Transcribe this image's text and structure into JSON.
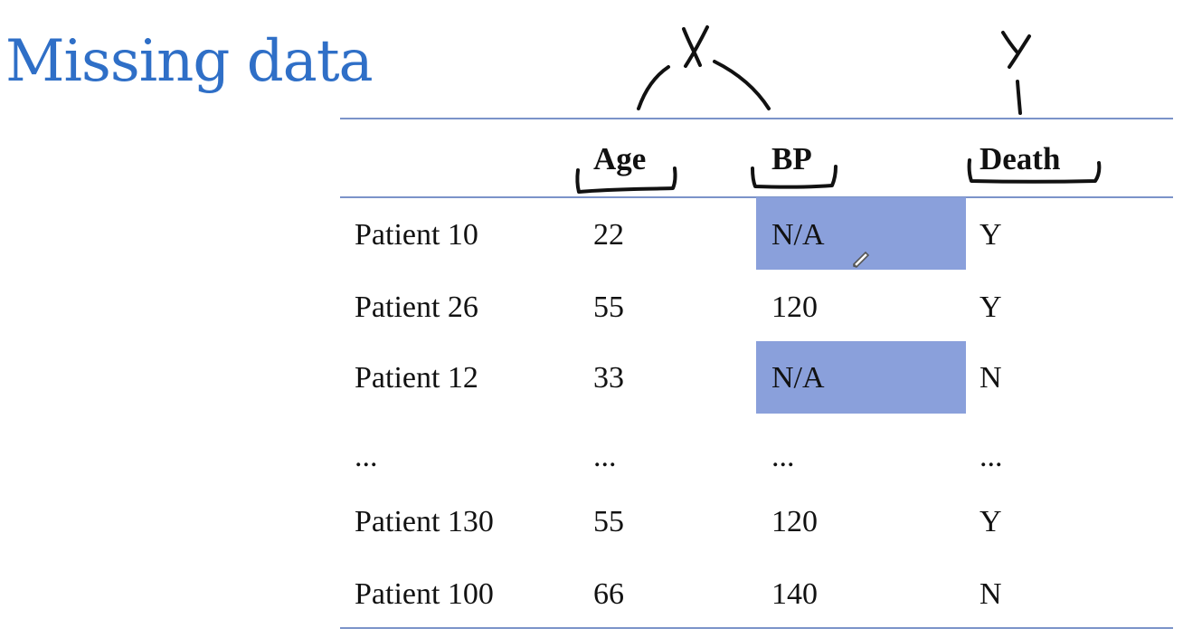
{
  "title": "Missing data",
  "annotations": {
    "x_label": "X",
    "y_label": "Y"
  },
  "table": {
    "headers": [
      "",
      "Age",
      "BP",
      "Death"
    ],
    "rows": [
      {
        "name": "Patient 10",
        "age": "22",
        "bp": "N/A",
        "death": "Y",
        "missing_bp": true
      },
      {
        "name": "Patient 26",
        "age": "55",
        "bp": "120",
        "death": "Y",
        "missing_bp": false
      },
      {
        "name": "Patient 12",
        "age": "33",
        "bp": "N/A",
        "death": "N",
        "missing_bp": true
      },
      {
        "name": "...",
        "age": "...",
        "bp": "...",
        "death": "...",
        "missing_bp": false
      },
      {
        "name": "Patient 130",
        "age": "55",
        "bp": "120",
        "death": "Y",
        "missing_bp": false
      },
      {
        "name": "Patient 100",
        "age": "66",
        "bp": "140",
        "death": "N",
        "missing_bp": false
      }
    ]
  },
  "colors": {
    "title": "#2f6fc7",
    "rule": "#7b93c9",
    "missing_highlight": "#8aa0db"
  },
  "icons": {
    "cursor": "pencil-icon"
  }
}
